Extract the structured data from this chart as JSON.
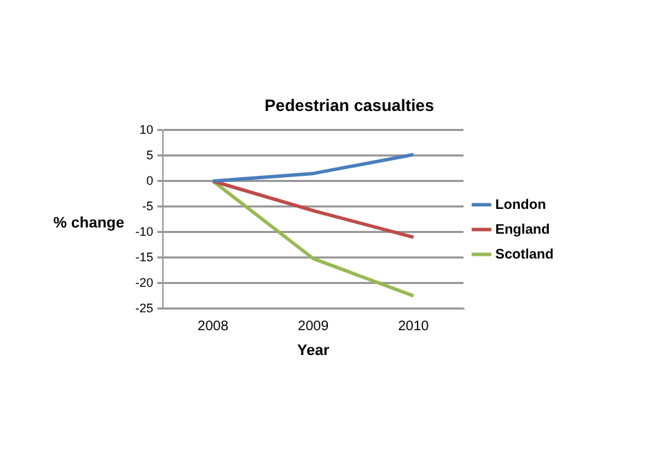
{
  "chart_data": {
    "type": "line",
    "title": "Pedestrian casualties",
    "xlabel": "Year",
    "ylabel": "% change",
    "categories": [
      "2008",
      "2009",
      "2010"
    ],
    "series": [
      {
        "name": "London",
        "color": "#4a7ebb",
        "values": [
          0,
          1.5,
          5.2
        ]
      },
      {
        "name": "England",
        "color": "#be4b48",
        "values": [
          0,
          -5.8,
          -11
        ]
      },
      {
        "name": "Scotland",
        "color": "#98b954",
        "values": [
          0,
          -15.2,
          -22.5
        ]
      }
    ],
    "ylim": [
      -25,
      10
    ],
    "yticks": [
      -25,
      -20,
      -15,
      -10,
      -5,
      0,
      5,
      10
    ],
    "grid": "y",
    "legend": "right",
    "marker": "none",
    "line_style": "solid"
  }
}
